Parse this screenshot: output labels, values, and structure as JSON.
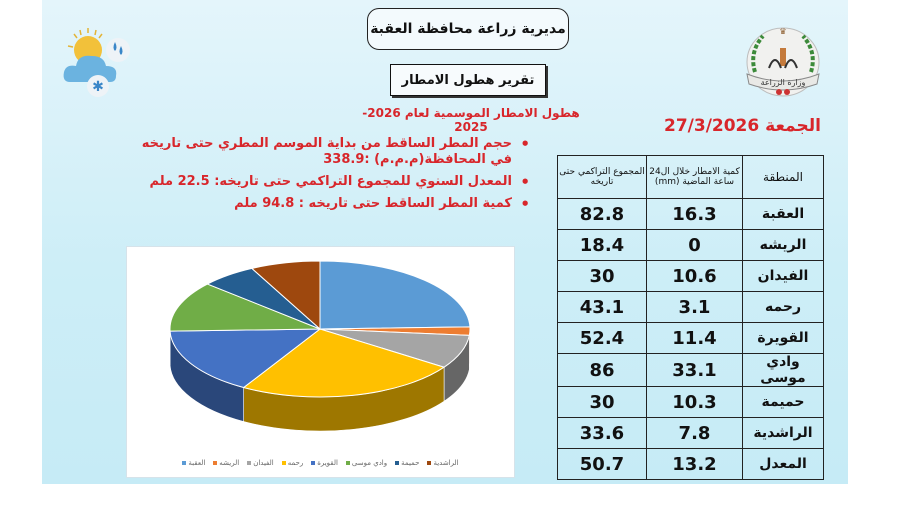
{
  "header": {
    "directorate": "مديرية زراعة محافظة العقبة",
    "report_title": "تقرير هطول الامطار",
    "season_title": "هطول الامطار الموسمية لعام 2026-2025",
    "date": "الجمعة 27/3/2026"
  },
  "icons": {
    "weather": "weather-sun-cloud-rain-snow-icon",
    "logo": "ministry-of-agriculture-logo"
  },
  "bullets": [
    {
      "line1": "حجم المطر الساقط من بداية الموسم المطري حتى تاريخه",
      "line2": "في المحافظة(م.م.م)   :338.9"
    },
    {
      "line1": "المعدل السنوي للمجموع التراكمي حتى تاريخه: 22.5 ملم"
    },
    {
      "line1": "كمية المطر الساقط حتى تاريخه : 94.8 ملم"
    }
  ],
  "table": {
    "headers": {
      "region": "المنطقة",
      "rain_24h": "كمية الامطار خلال ال24 ساعة الماضية (mm)",
      "cumulative": "المجموع التراكمي حتى تاريخه"
    },
    "rows": [
      {
        "region": "العقبة",
        "rain_24h": "16.3",
        "cumulative": "82.8"
      },
      {
        "region": "الريشه",
        "rain_24h": "0",
        "cumulative": "18.4"
      },
      {
        "region": "الفيدان",
        "rain_24h": "10.6",
        "cumulative": "30"
      },
      {
        "region": "رحمه",
        "rain_24h": "3.1",
        "cumulative": "43.1"
      },
      {
        "region": "القويرة",
        "rain_24h": "11.4",
        "cumulative": "52.4"
      },
      {
        "region": "وادي موسى",
        "rain_24h": "33.1",
        "cumulative": "86"
      },
      {
        "region": "حميمة",
        "rain_24h": "10.3",
        "cumulative": "30"
      },
      {
        "region": "الراشدية",
        "rain_24h": "7.8",
        "cumulative": "33.6"
      },
      {
        "region": "المعدل",
        "rain_24h": "13.2",
        "cumulative": "50.7"
      }
    ]
  },
  "chart_data": {
    "type": "pie",
    "title": "",
    "style": "3d",
    "categories": [
      "العقبة",
      "الريشه",
      "الفيدان",
      "رحمه",
      "القويرة",
      "وادي موسى",
      "حميمة",
      "الراشدية"
    ],
    "values": [
      24.5,
      2,
      8,
      24,
      16,
      12,
      6,
      7.5
    ],
    "colors": [
      "#5b9bd5",
      "#ed7d31",
      "#a5a5a5",
      "#ffc000",
      "#4472c4",
      "#70ad47",
      "#255e91",
      "#9e480e"
    ],
    "legend_position": "bottom"
  }
}
